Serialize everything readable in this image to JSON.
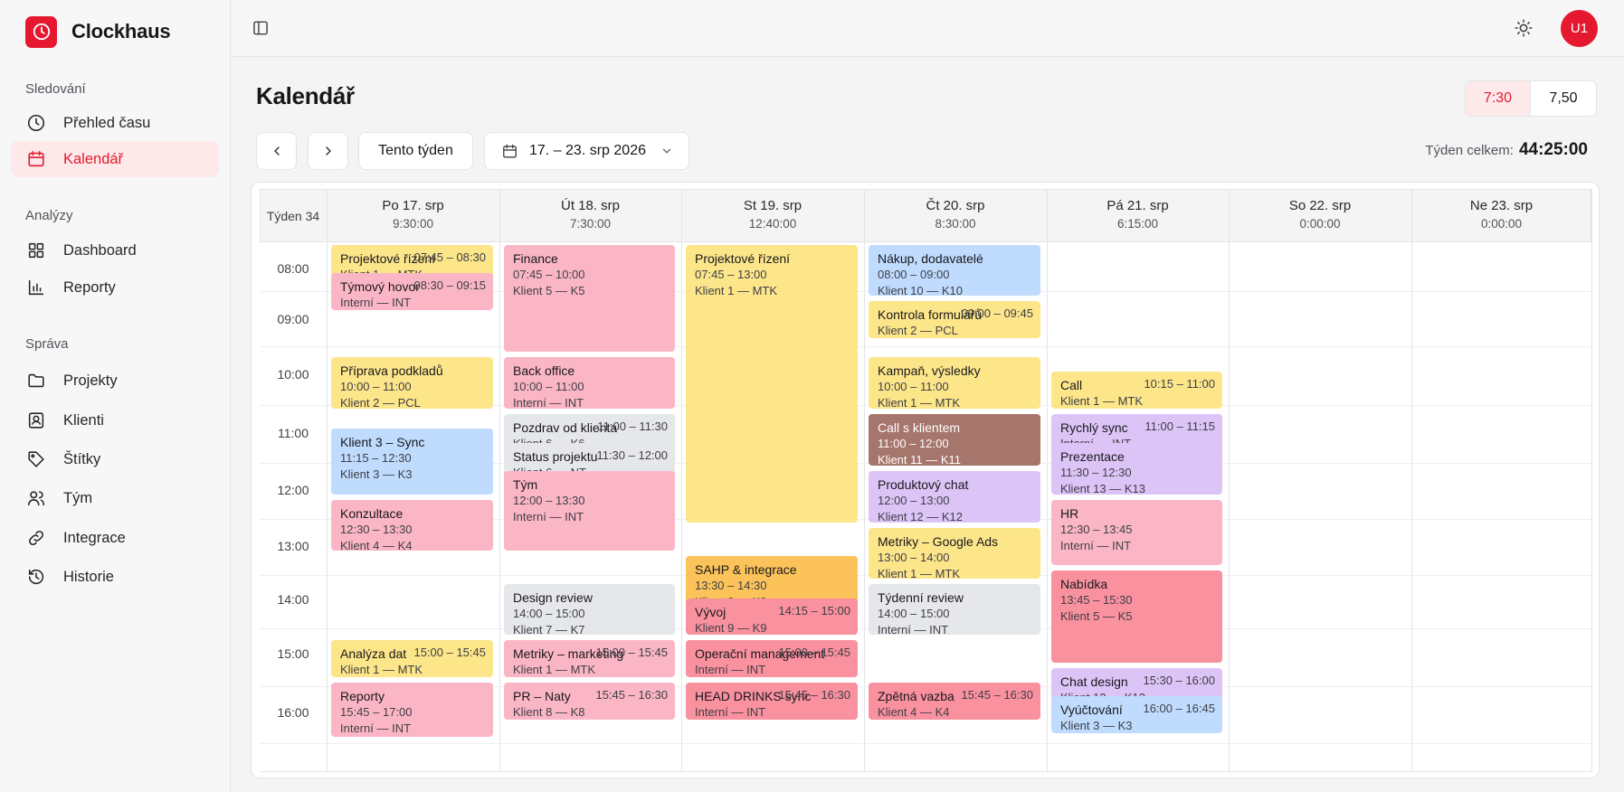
{
  "app": {
    "name": "Clockhaus"
  },
  "sidebar": {
    "sections": [
      {
        "label": "Sledování",
        "items": [
          {
            "label": "Přehled času",
            "icon": "clock-icon",
            "active": false
          },
          {
            "label": "Kalendář",
            "icon": "calendar-icon",
            "active": true
          }
        ]
      },
      {
        "label": "Analýzy",
        "items": [
          {
            "label": "Dashboard",
            "icon": "grid-icon",
            "active": false
          },
          {
            "label": "Reporty",
            "icon": "bar-chart-icon",
            "active": false
          }
        ]
      },
      {
        "label": "Správa",
        "items": [
          {
            "label": "Projekty",
            "icon": "folder-icon",
            "active": false
          },
          {
            "label": "Klienti",
            "icon": "contact-icon",
            "active": false
          },
          {
            "label": "Štítky",
            "icon": "tag-icon",
            "active": false
          },
          {
            "label": "Tým",
            "icon": "users-icon",
            "active": false
          },
          {
            "label": "Integrace",
            "icon": "link-icon",
            "active": false
          },
          {
            "label": "Historie",
            "icon": "history-icon",
            "active": false
          }
        ]
      }
    ]
  },
  "topbar": {
    "avatar_initials": "U1"
  },
  "header": {
    "title": "Kalendář",
    "format_options": [
      "7:30",
      "7,50"
    ],
    "format_active": "7:30",
    "this_week_label": "Tento týden",
    "date_range": "17. – 23. srp 2026",
    "week_total_label": "Týden celkem:",
    "week_total_value": "44:25:00"
  },
  "calendar": {
    "week_label": "Týden 34",
    "days": [
      {
        "name": "Po 17. srp",
        "total": "9:30:00"
      },
      {
        "name": "Út 18. srp",
        "total": "7:30:00"
      },
      {
        "name": "St 19. srp",
        "total": "12:40:00"
      },
      {
        "name": "Čt 20. srp",
        "total": "8:30:00"
      },
      {
        "name": "Pá 21. srp",
        "total": "6:15:00"
      },
      {
        "name": "So 22. srp",
        "total": "0:00:00"
      },
      {
        "name": "Ne 23. srp",
        "total": "0:00:00"
      }
    ],
    "hours": [
      "08:00",
      "09:00",
      "10:00",
      "11:00",
      "12:00",
      "13:00",
      "14:00",
      "15:00",
      "16:00"
    ],
    "colors": {
      "yellow": "#fde68a",
      "pink": "#fbb6c6",
      "blue": "#bfdbfe",
      "gray": "#e5e7eb",
      "purple": "#ddc4f7",
      "rose": "#f9919f",
      "orange": "#fcc35a",
      "brown": "#a6756b",
      "accent": "#e5182f"
    },
    "events": [
      {
        "day": 0,
        "title": "Projektové řízení",
        "time": "07:45 – 08:30",
        "client": "Klient 1 — MTK",
        "color": "yellow"
      },
      {
        "day": 0,
        "title": "Týmový hovor",
        "time": "08:30 – 09:15",
        "client": "Interní — INT",
        "color": "pink"
      },
      {
        "day": 0,
        "title": "Příprava podkladů",
        "time": "10:00 – 11:00",
        "client": "Klient 2 — PCL",
        "color": "yellow"
      },
      {
        "day": 0,
        "title": "Klient 3 – Sync",
        "time": "11:15 – 12:30",
        "client": "Klient 3 — K3",
        "color": "blue"
      },
      {
        "day": 0,
        "title": "Konzultace",
        "time": "12:30 – 13:30",
        "client": "Klient 4 — K4",
        "color": "pink"
      },
      {
        "day": 0,
        "title": "Analýza dat",
        "time": "15:00 – 15:45",
        "client": "Klient 1 — MTK",
        "color": "yellow"
      },
      {
        "day": 0,
        "title": "Reporty",
        "time": "15:45 – 17:00",
        "client": "Interní — INT",
        "color": "pink"
      },
      {
        "day": 1,
        "title": "Finance",
        "time": "07:45 – 10:00",
        "client": "Klient 5 — K5",
        "color": "pink"
      },
      {
        "day": 1,
        "title": "Back office",
        "time": "10:00 – 11:00",
        "client": "Interní — INT",
        "color": "pink"
      },
      {
        "day": 1,
        "title": "Pozdrav od klienta",
        "time": "11:00 – 11:30",
        "client": "Klient 6 — K6",
        "color": "gray"
      },
      {
        "day": 1,
        "title": "Status projektu",
        "time": "11:30 – 12:00",
        "client": "Klient 6 — NT",
        "color": "gray"
      },
      {
        "day": 1,
        "title": "Tým",
        "time": "12:00 – 13:30",
        "client": "Interní — INT",
        "color": "pink"
      },
      {
        "day": 1,
        "title": "Design review",
        "time": "14:00 – 15:00",
        "client": "Klient 7 — K7",
        "color": "gray"
      },
      {
        "day": 1,
        "title": "Metriky – marketing",
        "time": "15:00 – 15:45",
        "client": "Klient 1 — MTK",
        "color": "pink"
      },
      {
        "day": 1,
        "title": "PR – Naty",
        "time": "15:45 – 16:30",
        "client": "Klient 8 — K8",
        "color": "pink"
      },
      {
        "day": 2,
        "title": "Projektové řízení",
        "time": "07:45 – 13:00",
        "client": "Klient 1 — MTK",
        "color": "yellow"
      },
      {
        "day": 2,
        "title": "SAHP & integrace",
        "time": "13:30 – 14:30",
        "client": "Klient 9 — K9",
        "color": "orange"
      },
      {
        "day": 2,
        "title": "Vývoj",
        "time": "14:15 – 15:00",
        "client": "Klient 9 — K9",
        "color": "rose"
      },
      {
        "day": 2,
        "title": "Operační management",
        "time": "15:00 – 15:45",
        "client": "Interní — INT",
        "color": "rose"
      },
      {
        "day": 2,
        "title": "HEAD DRINKS sync",
        "time": "15:45 – 16:30",
        "client": "Interní — INT",
        "color": "rose"
      },
      {
        "day": 3,
        "title": "Nákup, dodavatelé",
        "time": "08:00 – 09:00",
        "client": "Klient 10 — K10",
        "color": "blue"
      },
      {
        "day": 3,
        "title": "Kontrola formulářů",
        "time": "09:00 – 09:45",
        "client": "Klient 2 — PCL",
        "color": "yellow"
      },
      {
        "day": 3,
        "title": "Kampaň, výsledky",
        "time": "10:00 – 11:00",
        "client": "Klient 1 — MTK",
        "color": "yellow"
      },
      {
        "day": 3,
        "title": "Call s klientem",
        "time": "11:00 – 12:00",
        "client": "Klient 11 — K11",
        "color": "brown"
      },
      {
        "day": 3,
        "title": "Produktový chat",
        "time": "12:00 – 13:00",
        "client": "Klient 12 — K12",
        "color": "purple"
      },
      {
        "day": 3,
        "title": "Metriky – Google Ads",
        "time": "13:00 – 14:00",
        "client": "Klient 1 — MTK",
        "color": "yellow"
      },
      {
        "day": 3,
        "title": "Týdenní review",
        "time": "14:00 – 15:00",
        "client": "Interní — INT",
        "color": "gray"
      },
      {
        "day": 3,
        "title": "Zpětná vazba",
        "time": "15:45 – 16:30",
        "client": "Klient 4 — K4",
        "color": "rose"
      },
      {
        "day": 4,
        "title": "Call",
        "time": "10:15 – 11:00",
        "client": "Klient 1 — MTK",
        "color": "yellow"
      },
      {
        "day": 4,
        "title": "Rychlý sync",
        "time": "11:00 – 11:15",
        "client": "Interní — INT",
        "color": "purple"
      },
      {
        "day": 4,
        "title": "Prezentace",
        "time": "11:30 – 12:30",
        "client": "Klient 13 — K13",
        "color": "purple"
      },
      {
        "day": 4,
        "title": "HR",
        "time": "12:30 – 13:45",
        "client": "Interní — INT",
        "color": "pink"
      },
      {
        "day": 4,
        "title": "Nabídka",
        "time": "13:45 – 15:30",
        "client": "Klient 5 — K5",
        "color": "rose"
      },
      {
        "day": 4,
        "title": "Chat design",
        "time": "15:30 – 16:00",
        "client": "Klient 12 — K12",
        "color": "purple"
      },
      {
        "day": 4,
        "title": "Vyúčtování",
        "time": "16:00 – 16:45",
        "client": "Klient 3 — K3",
        "color": "blue"
      }
    ]
  }
}
